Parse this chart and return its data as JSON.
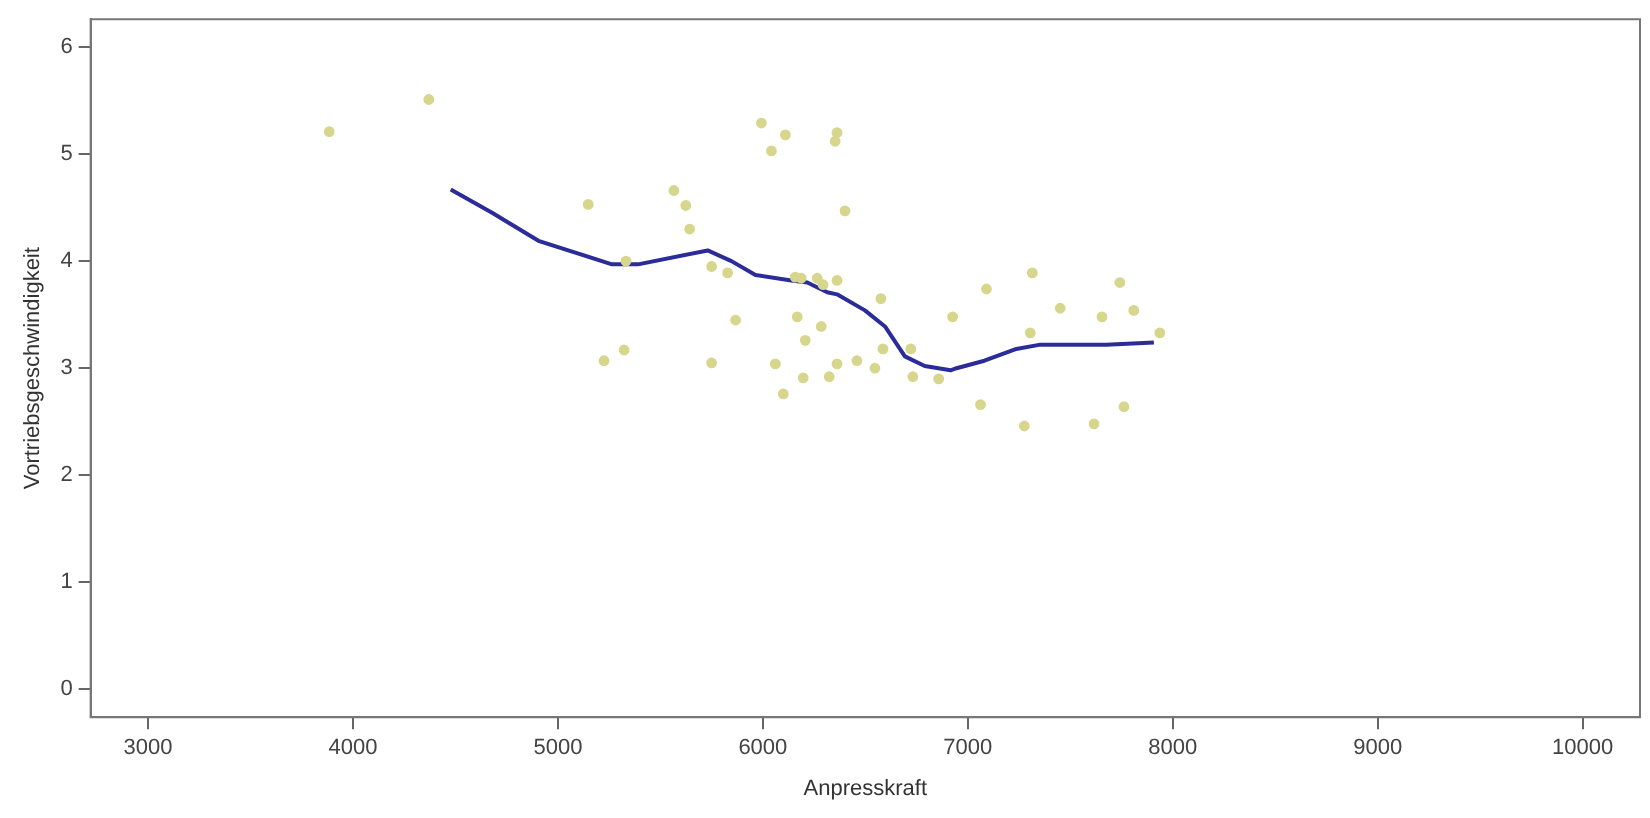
{
  "chart_data": {
    "type": "scatter",
    "xlabel": "Anpresskraft",
    "ylabel": "Vortriebsgeschwindigkeit",
    "xlim": [
      2720,
      10280
    ],
    "ylim": [
      -0.26,
      6.26
    ],
    "xticks": [
      3000,
      4000,
      5000,
      6000,
      7000,
      8000,
      9000,
      10000
    ],
    "yticks": [
      0,
      1,
      2,
      3,
      4,
      5,
      6
    ],
    "grid": false,
    "legend": false,
    "series": [
      {
        "color": "#d6d68c",
        "marker": "circle",
        "x": [
          3884,
          4370,
          5148,
          5566,
          5624,
          5643,
          5993,
          6110,
          6042,
          5750,
          5828,
          5332,
          5225,
          5323,
          5750,
          5867,
          6061,
          6100,
          6197,
          6168,
          6207,
          6285,
          6362,
          6353,
          6401,
          6158,
          6187,
          6265,
          6294,
          6362,
          6576,
          6926,
          6324,
          6362,
          6459,
          6547,
          6586,
          6722,
          6732,
          6858,
          7315,
          7091,
          7742,
          7451,
          7655,
          7810,
          7305,
          7937,
          7062,
          7276,
          7616,
          7762
        ],
        "values": [
          5.21,
          5.51,
          4.53,
          4.66,
          4.52,
          4.3,
          5.29,
          5.18,
          5.03,
          3.95,
          3.89,
          4.0,
          3.07,
          3.17,
          3.05,
          3.45,
          3.04,
          2.76,
          2.91,
          3.48,
          3.26,
          3.39,
          5.2,
          5.12,
          4.47,
          3.85,
          3.84,
          3.84,
          3.78,
          3.82,
          3.65,
          3.48,
          2.92,
          3.04,
          3.07,
          3.0,
          3.18,
          3.18,
          2.92,
          2.9,
          3.89,
          3.74,
          3.8,
          3.56,
          3.48,
          3.54,
          3.33,
          3.33,
          2.66,
          2.46,
          2.48,
          2.64
        ]
      },
      {
        "type": "line",
        "color": "#2b2b9a",
        "marker": "none",
        "line_style": "solid",
        "x": [
          4477,
          4681,
          4905,
          5264,
          5391,
          5731,
          5847,
          5964,
          6139,
          6217,
          6314,
          6362,
          6498,
          6596,
          6693,
          6790,
          6916,
          6945,
          7081,
          7237,
          7354,
          7675,
          7908
        ],
        "values": [
          4.67,
          4.45,
          4.19,
          3.97,
          3.97,
          4.1,
          4.0,
          3.87,
          3.82,
          3.8,
          3.71,
          3.69,
          3.54,
          3.39,
          3.11,
          3.02,
          2.98,
          3.0,
          3.07,
          3.18,
          3.22,
          3.22,
          3.24
        ]
      }
    ]
  }
}
